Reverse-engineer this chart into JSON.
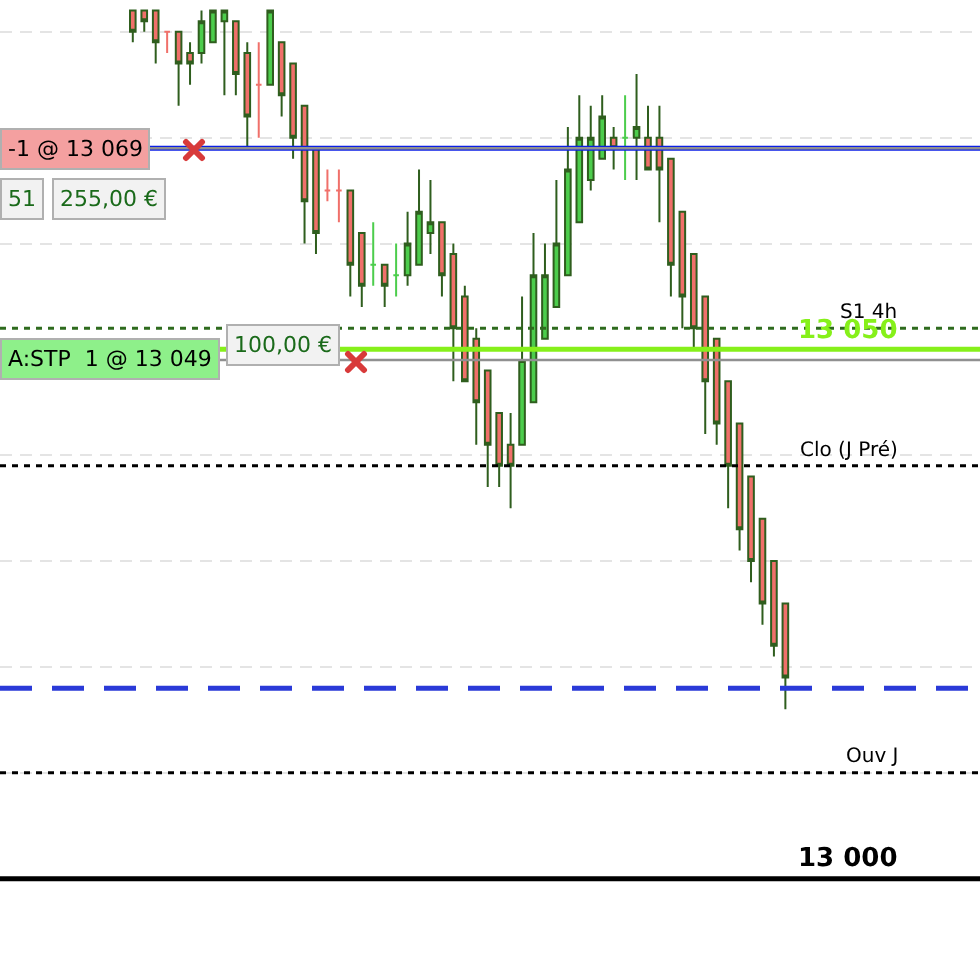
{
  "chart_data": {
    "type": "candlestick",
    "categories": [
      null,
      null,
      null,
      null,
      null,
      null,
      null,
      null,
      null,
      null,
      null,
      null,
      null,
      null,
      null,
      null,
      null,
      null,
      null,
      null,
      null,
      null,
      null,
      null,
      null,
      null,
      null,
      null,
      null,
      null,
      null,
      null,
      null,
      null,
      null,
      null,
      null,
      null,
      null,
      null,
      null,
      null,
      null,
      null,
      null,
      null,
      null,
      null,
      null,
      null,
      null,
      null,
      null,
      null,
      null,
      null,
      null,
      null
    ],
    "ohlc": [
      [
        13082,
        13082,
        13079,
        13080
      ],
      [
        13082,
        13082,
        13080,
        13081
      ],
      [
        13082,
        13082,
        13077,
        13079
      ],
      [
        13080,
        13080,
        13078,
        13080
      ],
      [
        13080,
        13080,
        13073,
        13077
      ],
      [
        13078,
        13079,
        13075,
        13077
      ],
      [
        13078,
        13082,
        13077,
        13081
      ],
      [
        13079,
        13082,
        13079,
        13082
      ],
      [
        13081,
        13082,
        13074,
        13082
      ],
      [
        13081,
        13081,
        13074,
        13076
      ],
      [
        13078,
        13079,
        13069,
        13072
      ],
      [
        13075,
        13079,
        13070,
        13075
      ],
      [
        13075,
        13082,
        13075,
        13082
      ],
      [
        13079,
        13079,
        13072,
        13074
      ],
      [
        13077,
        13077,
        13068,
        13070
      ],
      [
        13073,
        13073,
        13060,
        13064
      ],
      [
        13069,
        13069,
        13059,
        13061
      ],
      [
        13065,
        13067,
        13064,
        13065
      ],
      [
        13065,
        13067,
        13062,
        13065
      ],
      [
        13065,
        13065,
        13055,
        13058
      ],
      [
        13061,
        13061,
        13054,
        13056
      ],
      [
        13058,
        13062,
        13056,
        13058
      ],
      [
        13058,
        13058,
        13054,
        13056
      ],
      [
        13057,
        13060,
        13055,
        13057
      ],
      [
        13057,
        13063,
        13056,
        13060
      ],
      [
        13058,
        13067,
        13058,
        13063
      ],
      [
        13061,
        13066,
        13059,
        13062
      ],
      [
        13062,
        13062,
        13055,
        13057
      ],
      [
        13059,
        13060,
        13047,
        13052
      ],
      [
        13055,
        13056,
        13047,
        13047
      ],
      [
        13051,
        13052,
        13041,
        13045
      ],
      [
        13048,
        13048,
        13037,
        13041
      ],
      [
        13044,
        13044,
        13037,
        13039
      ],
      [
        13041,
        13044,
        13035,
        13039
      ],
      [
        13041,
        13055,
        13041,
        13049
      ],
      [
        13045,
        13061,
        13045,
        13057
      ],
      [
        13051,
        13060,
        13051,
        13057
      ],
      [
        13054,
        13066,
        13054,
        13060
      ],
      [
        13057,
        13071,
        13057,
        13067
      ],
      [
        13062,
        13074,
        13062,
        13070
      ],
      [
        13066,
        13073,
        13065,
        13070
      ],
      [
        13068,
        13074,
        13068,
        13072
      ],
      [
        13070,
        13071,
        13067,
        13069
      ],
      [
        13070,
        13074,
        13066,
        13070
      ],
      [
        13070,
        13076,
        13066,
        13071
      ],
      [
        13070,
        13073,
        13067,
        13067
      ],
      [
        13070,
        13073,
        13062,
        13067
      ],
      [
        13068,
        13068,
        13055,
        13058
      ],
      [
        13063,
        13063,
        13052,
        13055
      ],
      [
        13059,
        13059,
        13050,
        13052
      ],
      [
        13055,
        13055,
        13042,
        13047
      ],
      [
        13051,
        13051,
        13041,
        13043
      ],
      [
        13047,
        13047,
        13035,
        13039
      ],
      [
        13043,
        13043,
        13031,
        13033
      ],
      [
        13038,
        13038,
        13028,
        13030
      ],
      [
        13034,
        13034,
        13024,
        13026
      ],
      [
        13030,
        13030,
        13021,
        13022
      ],
      [
        13026,
        13026,
        13016,
        13019
      ]
    ],
    "colors": [
      "#f0706a",
      "#f0706a",
      "#f0706a",
      "#f0706a",
      "#f0706a",
      "#f0706a",
      "#4ccd4c",
      "#4ccd4c",
      "#4ccd4c",
      "#f0706a",
      "#f0706a",
      "#f0706a",
      "#4ccd4c",
      "#f0706a",
      "#f0706a",
      "#f0706a",
      "#f0706a",
      "#f0706a",
      "#f0706a",
      "#f0706a",
      "#f0706a",
      "#4ccd4c",
      "#f0706a",
      "#4ccd4c",
      "#4ccd4c",
      "#4ccd4c",
      "#4ccd4c",
      "#f0706a",
      "#f0706a",
      "#f0706a",
      "#f0706a",
      "#f0706a",
      "#f0706a",
      "#f0706a",
      "#4ccd4c",
      "#4ccd4c",
      "#4ccd4c",
      "#4ccd4c",
      "#4ccd4c",
      "#4ccd4c",
      "#4ccd4c",
      "#4ccd4c",
      "#f0706a",
      "#4ccd4c",
      "#4ccd4c",
      "#f0706a",
      "#f0706a",
      "#f0706a",
      "#f0706a",
      "#f0706a",
      "#f0706a",
      "#f0706a",
      "#f0706a",
      "#f0706a",
      "#f0706a",
      "#f0706a",
      "#f0706a",
      "#f0706a"
    ],
    "ylim": [
      12991,
      13083
    ],
    "yticks": [
      {
        "value": 13000,
        "label": null
      },
      {
        "value": 13010,
        "label": null
      },
      {
        "value": 13020,
        "label": null
      },
      {
        "value": 13030,
        "label": null
      },
      {
        "value": 13040,
        "label": null
      },
      {
        "value": 13050,
        "label": null
      },
      {
        "value": 13060,
        "label": null
      },
      {
        "value": 13070,
        "label": null
      },
      {
        "value": 13080,
        "label": null
      }
    ],
    "grid": "y",
    "ref_lines": [
      {
        "axis": "y",
        "value": 13069,
        "label": null,
        "color": "#0a1ee6",
        "line_style": "solid"
      },
      {
        "axis": "y",
        "value": 13069,
        "label": "-1 @ 13 069",
        "color": "#909090",
        "line_style": "solid"
      },
      {
        "axis": "y",
        "value": 13052,
        "label": "S1 4h",
        "color": "#2e6b1e",
        "line_style": "dotted"
      },
      {
        "axis": "y",
        "value": 13050,
        "label": "13 050",
        "color": "#86f01a",
        "line_style": "solid"
      },
      {
        "axis": "y",
        "value": 13049,
        "label": "A:STP  1 @ 13 049",
        "color": "#909090",
        "line_style": "solid"
      },
      {
        "axis": "y",
        "value": 13039,
        "label": "Clo (J Pré)",
        "color": "#000000",
        "line_style": "dotted"
      },
      {
        "axis": "y",
        "value": 13018,
        "label": null,
        "color": "#2a3ad8",
        "line_style": "dashed"
      },
      {
        "axis": "y",
        "value": 13010,
        "label": "Ouv J",
        "color": "#000000",
        "line_style": "dotted"
      },
      {
        "axis": "y",
        "value": 13000,
        "label": "13 000",
        "color": "#000000",
        "line_style": "solid"
      }
    ],
    "annotations": [
      "51",
      "255,00 €",
      "100,00 €"
    ]
  }
}
